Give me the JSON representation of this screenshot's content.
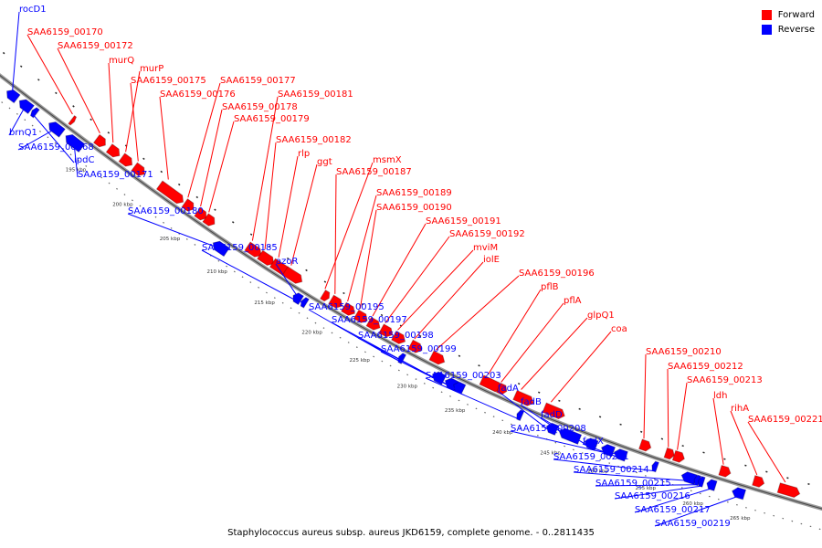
{
  "caption": "Staphylococcus aureus subsp. aureus JKD6159, complete genome. - 0..2811435",
  "legend": {
    "items": [
      {
        "label": "Forward",
        "color": "#ff0000"
      },
      {
        "label": "Reverse",
        "color": "#0000ff"
      }
    ]
  },
  "colors": {
    "forward": "#ff0000",
    "reverse": "#0000ff",
    "backbone": "#888888"
  },
  "ticks": [
    "195 kbp",
    "200 kbp",
    "205 kbp",
    "210 kbp",
    "215 kbp",
    "220 kbp",
    "225 kbp",
    "230 kbp",
    "235 kbp",
    "240 kbp",
    "245 kbp",
    "250 kbp",
    "255 kbp",
    "260 kbp",
    "265 kbp"
  ],
  "forward_genes": [
    "SAA6159_00170",
    "SAA6159_00172",
    "murQ",
    "murP",
    "SAA6159_00175",
    "SAA6159_00176",
    "SAA6159_00177",
    "SAA6159_00178",
    "SAA6159_00179",
    "SAA6159_00181",
    "SAA6159_00182",
    "rlp",
    "ggt",
    "msmX",
    "SAA6159_00187",
    "SAA6159_00189",
    "SAA6159_00190",
    "SAA6159_00191",
    "SAA6159_00192",
    "mviM",
    "iolE",
    "SAA6159_00196",
    "pflB",
    "pflA",
    "glpQ1",
    "coa",
    "SAA6159_00210",
    "SAA6159_00212",
    "SAA6159_00213",
    "ldh",
    "rihA",
    "SAA6159_00221"
  ],
  "reverse_genes": [
    "rocD1",
    "brnQ1",
    "SAA6159_00168",
    "ipdC",
    "SAA6159_00171",
    "SAA6159_00180",
    "SAA6159_00185",
    "azoR",
    "SAA6159_00195",
    "SAA6159_00197",
    "SAA6159_00198",
    "SAA6159_00199",
    "SAA6159_00203",
    "fadA",
    "fadB",
    "fadD",
    "SAA6159_00208",
    "fadX",
    "SAA6159_00211",
    "SAA6159_00214",
    "SAA6159_00215",
    "SAA6159_00216",
    "SAA6159_00217",
    "SAA6159_00219"
  ]
}
